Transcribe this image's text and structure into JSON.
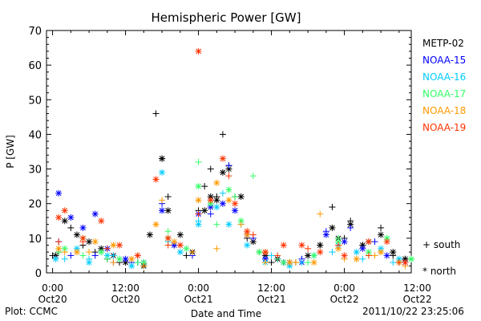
{
  "chart_data": {
    "type": "scatter",
    "title": "Hemispheric Power [GW]",
    "xlabel": "Date and Time",
    "ylabel": "P [GW]",
    "ylim": [
      0,
      70
    ],
    "yticks": [
      0,
      10,
      20,
      30,
      40,
      50,
      60,
      70
    ],
    "x_unit": "hours since 2011-10-20 00:00",
    "xlim": [
      -1,
      59
    ],
    "xticks": [
      {
        "x": 0,
        "line1": "0:00",
        "line2": "Oct20"
      },
      {
        "x": 12,
        "line1": "12:00",
        "line2": "Oct20"
      },
      {
        "x": 24,
        "line1": "0:00",
        "line2": "Oct21"
      },
      {
        "x": 36,
        "line1": "12:00",
        "line2": "Oct21"
      },
      {
        "x": 48,
        "line1": "0:00",
        "line2": "Oct22"
      },
      {
        "x": 60,
        "line1": "12:00",
        "line2": "Oct22"
      }
    ],
    "legend_placement": "right",
    "marker_key": {
      "south": "+ south",
      "north": "* north"
    },
    "series": [
      {
        "name": "METP-02",
        "color": "#000000",
        "south": [
          [
            0,
            5
          ],
          [
            1,
            6
          ],
          [
            3,
            13
          ],
          [
            5,
            8
          ],
          [
            7,
            6
          ],
          [
            9,
            4
          ],
          [
            11,
            3
          ],
          [
            14,
            3
          ],
          [
            17,
            46
          ],
          [
            18,
            33
          ],
          [
            19,
            22
          ],
          [
            20,
            8
          ],
          [
            22,
            5
          ],
          [
            24,
            18
          ],
          [
            25,
            25
          ],
          [
            26,
            30
          ],
          [
            27,
            22
          ],
          [
            28,
            40
          ],
          [
            29,
            31
          ],
          [
            30,
            22
          ],
          [
            32,
            10
          ],
          [
            34,
            6
          ],
          [
            36,
            3
          ],
          [
            38,
            3
          ],
          [
            40,
            3
          ],
          [
            44,
            8
          ],
          [
            46,
            19
          ],
          [
            48,
            10
          ],
          [
            49,
            15
          ],
          [
            51,
            8
          ],
          [
            54,
            13
          ],
          [
            56,
            5
          ],
          [
            58,
            4
          ]
        ],
        "north": [
          [
            0.5,
            5
          ],
          [
            2,
            15
          ],
          [
            4,
            11
          ],
          [
            6,
            9
          ],
          [
            8,
            7
          ],
          [
            10,
            5
          ],
          [
            12,
            3
          ],
          [
            15,
            2
          ],
          [
            16,
            11
          ],
          [
            18,
            33
          ],
          [
            19,
            18
          ],
          [
            21,
            11
          ],
          [
            23,
            6
          ],
          [
            25,
            18
          ],
          [
            26,
            22
          ],
          [
            27,
            21
          ],
          [
            28,
            29
          ],
          [
            29,
            30
          ],
          [
            31,
            22
          ],
          [
            33,
            9
          ],
          [
            35,
            5
          ],
          [
            37,
            4
          ],
          [
            39,
            3
          ],
          [
            42,
            5
          ],
          [
            44,
            8
          ],
          [
            46,
            13
          ],
          [
            47,
            10
          ],
          [
            49,
            14
          ],
          [
            51,
            8
          ],
          [
            52,
            9
          ],
          [
            54,
            11
          ],
          [
            56,
            6
          ],
          [
            58,
            4
          ]
        ]
      },
      {
        "name": "NOAA-15",
        "color": "#0000ff",
        "south": [
          [
            1,
            9
          ],
          [
            3,
            5
          ],
          [
            7,
            5
          ],
          [
            10,
            3
          ],
          [
            13,
            3
          ],
          [
            18,
            20
          ],
          [
            23,
            5
          ],
          [
            26,
            17
          ],
          [
            29,
            31
          ],
          [
            33,
            10
          ],
          [
            37,
            4
          ],
          [
            41,
            4
          ],
          [
            45,
            12
          ],
          [
            49,
            13
          ],
          [
            53,
            9
          ],
          [
            57,
            3
          ]
        ],
        "north": [
          [
            1,
            23
          ],
          [
            3,
            16
          ],
          [
            5,
            13
          ],
          [
            7,
            17
          ],
          [
            9,
            7
          ],
          [
            12,
            4
          ],
          [
            15,
            3
          ],
          [
            18,
            18
          ],
          [
            20,
            8
          ],
          [
            24,
            17
          ],
          [
            26,
            19
          ],
          [
            28,
            20
          ],
          [
            30,
            18
          ],
          [
            32,
            11
          ],
          [
            35,
            4
          ],
          [
            38,
            3
          ],
          [
            41,
            3
          ],
          [
            45,
            11
          ],
          [
            48,
            9
          ],
          [
            51,
            7
          ],
          [
            55,
            5
          ],
          [
            58,
            3
          ]
        ]
      },
      {
        "name": "NOAA-16",
        "color": "#00ccff",
        "south": [
          [
            2,
            4
          ],
          [
            6,
            4
          ],
          [
            10,
            5
          ],
          [
            14,
            3
          ],
          [
            19,
            9
          ],
          [
            24,
            15
          ],
          [
            28,
            23
          ],
          [
            31,
            14
          ],
          [
            36,
            5
          ],
          [
            41,
            3
          ],
          [
            46,
            6
          ],
          [
            51,
            4
          ],
          [
            56,
            3
          ]
        ],
        "north": [
          [
            0.5,
            4
          ],
          [
            4,
            7
          ],
          [
            6,
            3
          ],
          [
            9,
            5
          ],
          [
            13,
            2
          ],
          [
            18,
            29
          ],
          [
            21,
            6
          ],
          [
            24,
            14
          ],
          [
            27,
            19
          ],
          [
            29,
            14
          ],
          [
            32,
            8
          ],
          [
            35,
            3
          ],
          [
            39,
            2
          ],
          [
            43,
            5
          ],
          [
            47,
            8
          ],
          [
            50,
            6
          ],
          [
            54,
            7
          ],
          [
            57,
            4
          ]
        ]
      },
      {
        "name": "NOAA-17",
        "color": "#33ff66",
        "south": [
          [
            1,
            6
          ],
          [
            5,
            5
          ],
          [
            9,
            4
          ],
          [
            14,
            3
          ],
          [
            19,
            12
          ],
          [
            24,
            32
          ],
          [
            27,
            14
          ],
          [
            30,
            22
          ],
          [
            33,
            28
          ],
          [
            37,
            4
          ],
          [
            42,
            3
          ],
          [
            47,
            10
          ],
          [
            52,
            5
          ],
          [
            57,
            3
          ],
          [
            59,
            4
          ]
        ],
        "north": [
          [
            2,
            7
          ],
          [
            5,
            10
          ],
          [
            8,
            6
          ],
          [
            11,
            4
          ],
          [
            15,
            3
          ],
          [
            19,
            10
          ],
          [
            22,
            7
          ],
          [
            24,
            25
          ],
          [
            26,
            20
          ],
          [
            29,
            24
          ],
          [
            31,
            15
          ],
          [
            34,
            6
          ],
          [
            38,
            3
          ],
          [
            43,
            5
          ],
          [
            47,
            9
          ],
          [
            52,
            6
          ],
          [
            55,
            10
          ],
          [
            59,
            4
          ]
        ]
      },
      {
        "name": "NOAA-18",
        "color": "#ff9900",
        "south": [
          [
            2,
            6
          ],
          [
            6,
            6
          ],
          [
            10,
            3
          ],
          [
            15,
            2
          ],
          [
            18,
            21
          ],
          [
            23,
            6
          ],
          [
            27,
            7
          ],
          [
            31,
            14
          ],
          [
            35,
            3
          ],
          [
            40,
            3
          ],
          [
            44,
            17
          ],
          [
            48,
            4
          ],
          [
            53,
            5
          ],
          [
            58,
            2
          ]
        ],
        "north": [
          [
            1,
            7
          ],
          [
            4,
            6
          ],
          [
            7,
            9
          ],
          [
            10,
            8
          ],
          [
            13,
            4
          ],
          [
            17,
            14
          ],
          [
            20,
            9
          ],
          [
            24,
            21
          ],
          [
            27,
            26
          ],
          [
            29,
            21
          ],
          [
            32,
            11
          ],
          [
            35,
            6
          ],
          [
            39,
            3
          ],
          [
            43,
            3
          ],
          [
            47,
            7
          ],
          [
            50,
            4
          ],
          [
            54,
            6
          ],
          [
            57,
            3
          ]
        ]
      },
      {
        "name": "NOAA-19",
        "color": "#ff3300",
        "south": [
          [
            1,
            9
          ],
          [
            5,
            9
          ],
          [
            9,
            7
          ],
          [
            14,
            5
          ],
          [
            19,
            8
          ],
          [
            24,
            17
          ],
          [
            29,
            28
          ],
          [
            33,
            11
          ],
          [
            37,
            5
          ],
          [
            42,
            7
          ],
          [
            47,
            8
          ],
          [
            52,
            5
          ],
          [
            57,
            3
          ]
        ],
        "north": [
          [
            1,
            16
          ],
          [
            2,
            18
          ],
          [
            5,
            10
          ],
          [
            8,
            15
          ],
          [
            11,
            8
          ],
          [
            14,
            5
          ],
          [
            17,
            27
          ],
          [
            19,
            10
          ],
          [
            21,
            8
          ],
          [
            24,
            64
          ],
          [
            26,
            21
          ],
          [
            28,
            33
          ],
          [
            30,
            20
          ],
          [
            32,
            12
          ],
          [
            35,
            6
          ],
          [
            38,
            8
          ],
          [
            41,
            8
          ],
          [
            44,
            6
          ],
          [
            48,
            5
          ],
          [
            52,
            9
          ],
          [
            55,
            9
          ],
          [
            58,
            3
          ]
        ]
      }
    ]
  },
  "footer": {
    "plot_credit": "Plot: CCMC",
    "timestamp": "2011/10/22 23:25:06"
  }
}
